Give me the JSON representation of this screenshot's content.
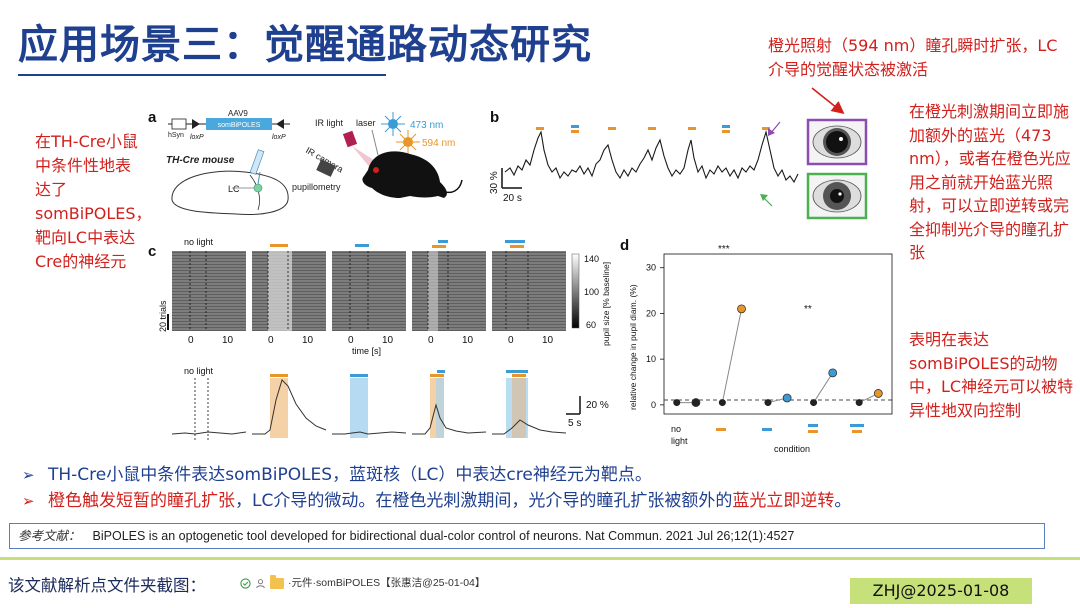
{
  "title": "应用场景三：觉醒通路动态研究",
  "notes": {
    "top": "橙光照射（594 nm）瞳孔瞬时扩张，LC介导的觉醒状态被激活",
    "right1": "在橙光刺激期间立即施加额外的蓝光（473 nm），或者在橙色光应用之前就开始蓝光照射，可以立即逆转或完全抑制光介导的瞳孔扩张",
    "right2": "表明在表达somBiPOLES的动物中，LC神经元可以被特异性地双向控制",
    "left": "在TH-Cre小鼠中条件性地表达了somBiPOLES，靶向LC中表达Cre的神经元"
  },
  "figure": {
    "panel_a": {
      "letter": "a",
      "construct_aav": "AAV9",
      "construct_hsyn": "hSyn",
      "construct_gene": "somBiPOLES",
      "loxp_left": "loxP",
      "loxp_right": "loxP",
      "mouse_label": "TH-Cre mouse",
      "lc_label": "LC",
      "ir_light": "IR light",
      "laser": "laser",
      "ir_camera": "IR camera",
      "pupillometry": "pupillometry",
      "blue_nm": "473 nm",
      "orange_nm": "594 nm"
    },
    "panel_b": {
      "letter": "b",
      "scale_y": "30 %",
      "scale_x": "20 s"
    },
    "panel_c": {
      "letter": "c",
      "no_light": "no light",
      "trials": "20 trials",
      "xlabel": "time [s]",
      "tick_0": "0",
      "tick_10": "10",
      "colorbar_label": "pupil size [% baseline]",
      "cb_140": "140",
      "cb_100": "100",
      "cb_60": "60",
      "no_light_2": "no light",
      "scale_y": "20 %",
      "scale_x": "5 s"
    },
    "panel_d": {
      "letter": "d",
      "ylabel": "relative change in pupil diam. (%)",
      "xlabel": "condition",
      "no_light_1": "no",
      "no_light_2": "light",
      "yticks": [
        "0",
        "10",
        "20",
        "30"
      ],
      "sig_1": "***",
      "sig_2": "**"
    },
    "colors": {
      "orange": "#e8962a",
      "blue": "#3b9bd6",
      "purple": "#8a4db0",
      "green": "#4caf50",
      "red": "#d2201c"
    }
  },
  "chart_data": {
    "type": "scatter",
    "title": "",
    "xlabel": "condition",
    "ylabel": "relative change in pupil diam. (%)",
    "ylim": [
      -2,
      33
    ],
    "categories": [
      "no light",
      "orange",
      "blue",
      "orange+blue",
      "blue+orange"
    ],
    "series": [
      {
        "values": [
          [
            0.5,
            0.5
          ],
          [
            0.5,
            21
          ],
          [
            0.5,
            1.5
          ],
          [
            0.5,
            7
          ],
          [
            0.5,
            2.5
          ]
        ]
      }
    ],
    "annotations": [
      "***",
      "**"
    ]
  },
  "bullets": {
    "b1": "TH-Cre小鼠中条件表达somBiPOLES，蓝斑核（LC）中表达cre神经元为靶点。",
    "b2_a": "橙色触发短暂的瞳孔扩张",
    "b2_b": "，LC介导的微动。在橙色光刺激期间，光介导的瞳孔扩张被额外的",
    "b2_c": "蓝光立即逆转",
    "b2_d": "。"
  },
  "reference": {
    "label": "参考文献：",
    "text": "BiPOLES is an optogenetic tool developed for bidirectional dual-color control of neurons. Nat Commun. 2021 Jul 26;12(1):4527"
  },
  "footer": {
    "label": "该文献解析点文件夹截图：",
    "file_chip": "·元件·somBiPOLES【张惠洁@25-01-04】",
    "date_badge": "ZHJ@2025-01-08"
  }
}
